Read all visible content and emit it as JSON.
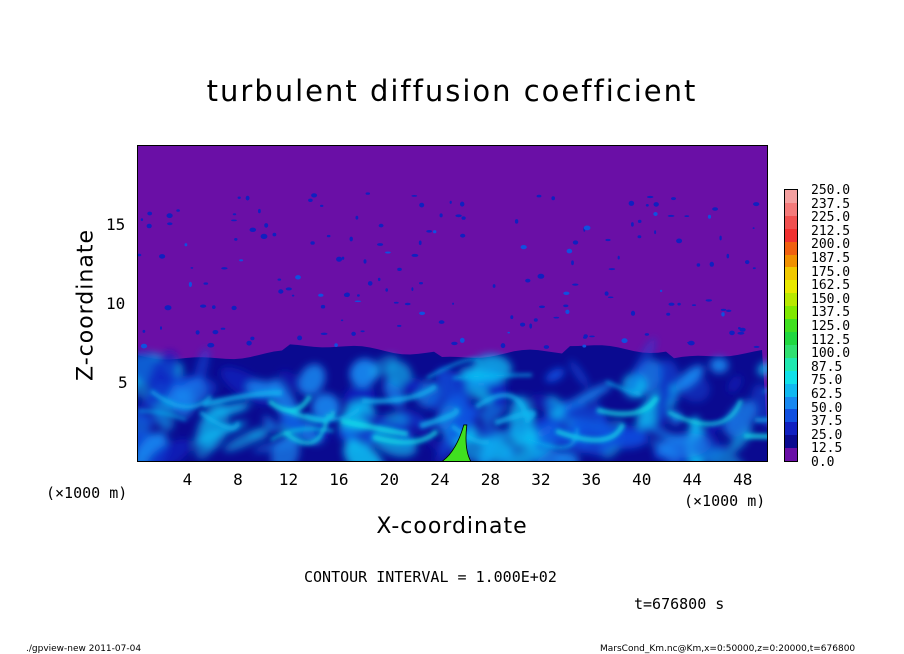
{
  "chart_data": {
    "type": "heatmap",
    "title": "turbulent diffusion coefficient",
    "xlabel": "X-coordinate",
    "ylabel": "Z-coordinate",
    "x_unit": "(×1000 m)",
    "y_unit": "(×1000 m)",
    "xlim": [
      0,
      50
    ],
    "ylim": [
      0,
      20
    ],
    "x_ticks": [
      "4",
      "8",
      "12",
      "16",
      "20",
      "24",
      "28",
      "32",
      "36",
      "40",
      "44",
      "48"
    ],
    "y_ticks": [
      "5",
      "10",
      "15"
    ],
    "colorbar": {
      "levels": [
        "250.0",
        "237.5",
        "225.0",
        "212.5",
        "200.0",
        "187.5",
        "175.0",
        "162.5",
        "150.0",
        "137.5",
        "125.0",
        "112.5",
        "100.0",
        "87.5",
        "75.0",
        "62.5",
        "50.0",
        "37.5",
        "25.0",
        "12.5",
        "0.0"
      ],
      "colors": [
        "#f4a0a0",
        "#f47a7a",
        "#f05050",
        "#f03030",
        "#f06010",
        "#f09000",
        "#f0c800",
        "#e8e800",
        "#b8e800",
        "#80e800",
        "#40e020",
        "#20d840",
        "#30e070",
        "#20e8b0",
        "#10e0e8",
        "#10b8f0",
        "#1888f0",
        "#1050e0",
        "#1020c0",
        "#0a0a90",
        "#6a0fa6"
      ]
    },
    "background_value": 0.0,
    "mixed_layer_top_km": 6.8,
    "contour_interval": "CONTOUR INTERVAL = 1.000E+02",
    "time_label": "t=676800 s"
  },
  "footer": {
    "left": "./gpview-new   2011-07-04",
    "right": "MarsCond_Km.nc@Km,x=0:50000,z=0:20000,t=676800"
  }
}
